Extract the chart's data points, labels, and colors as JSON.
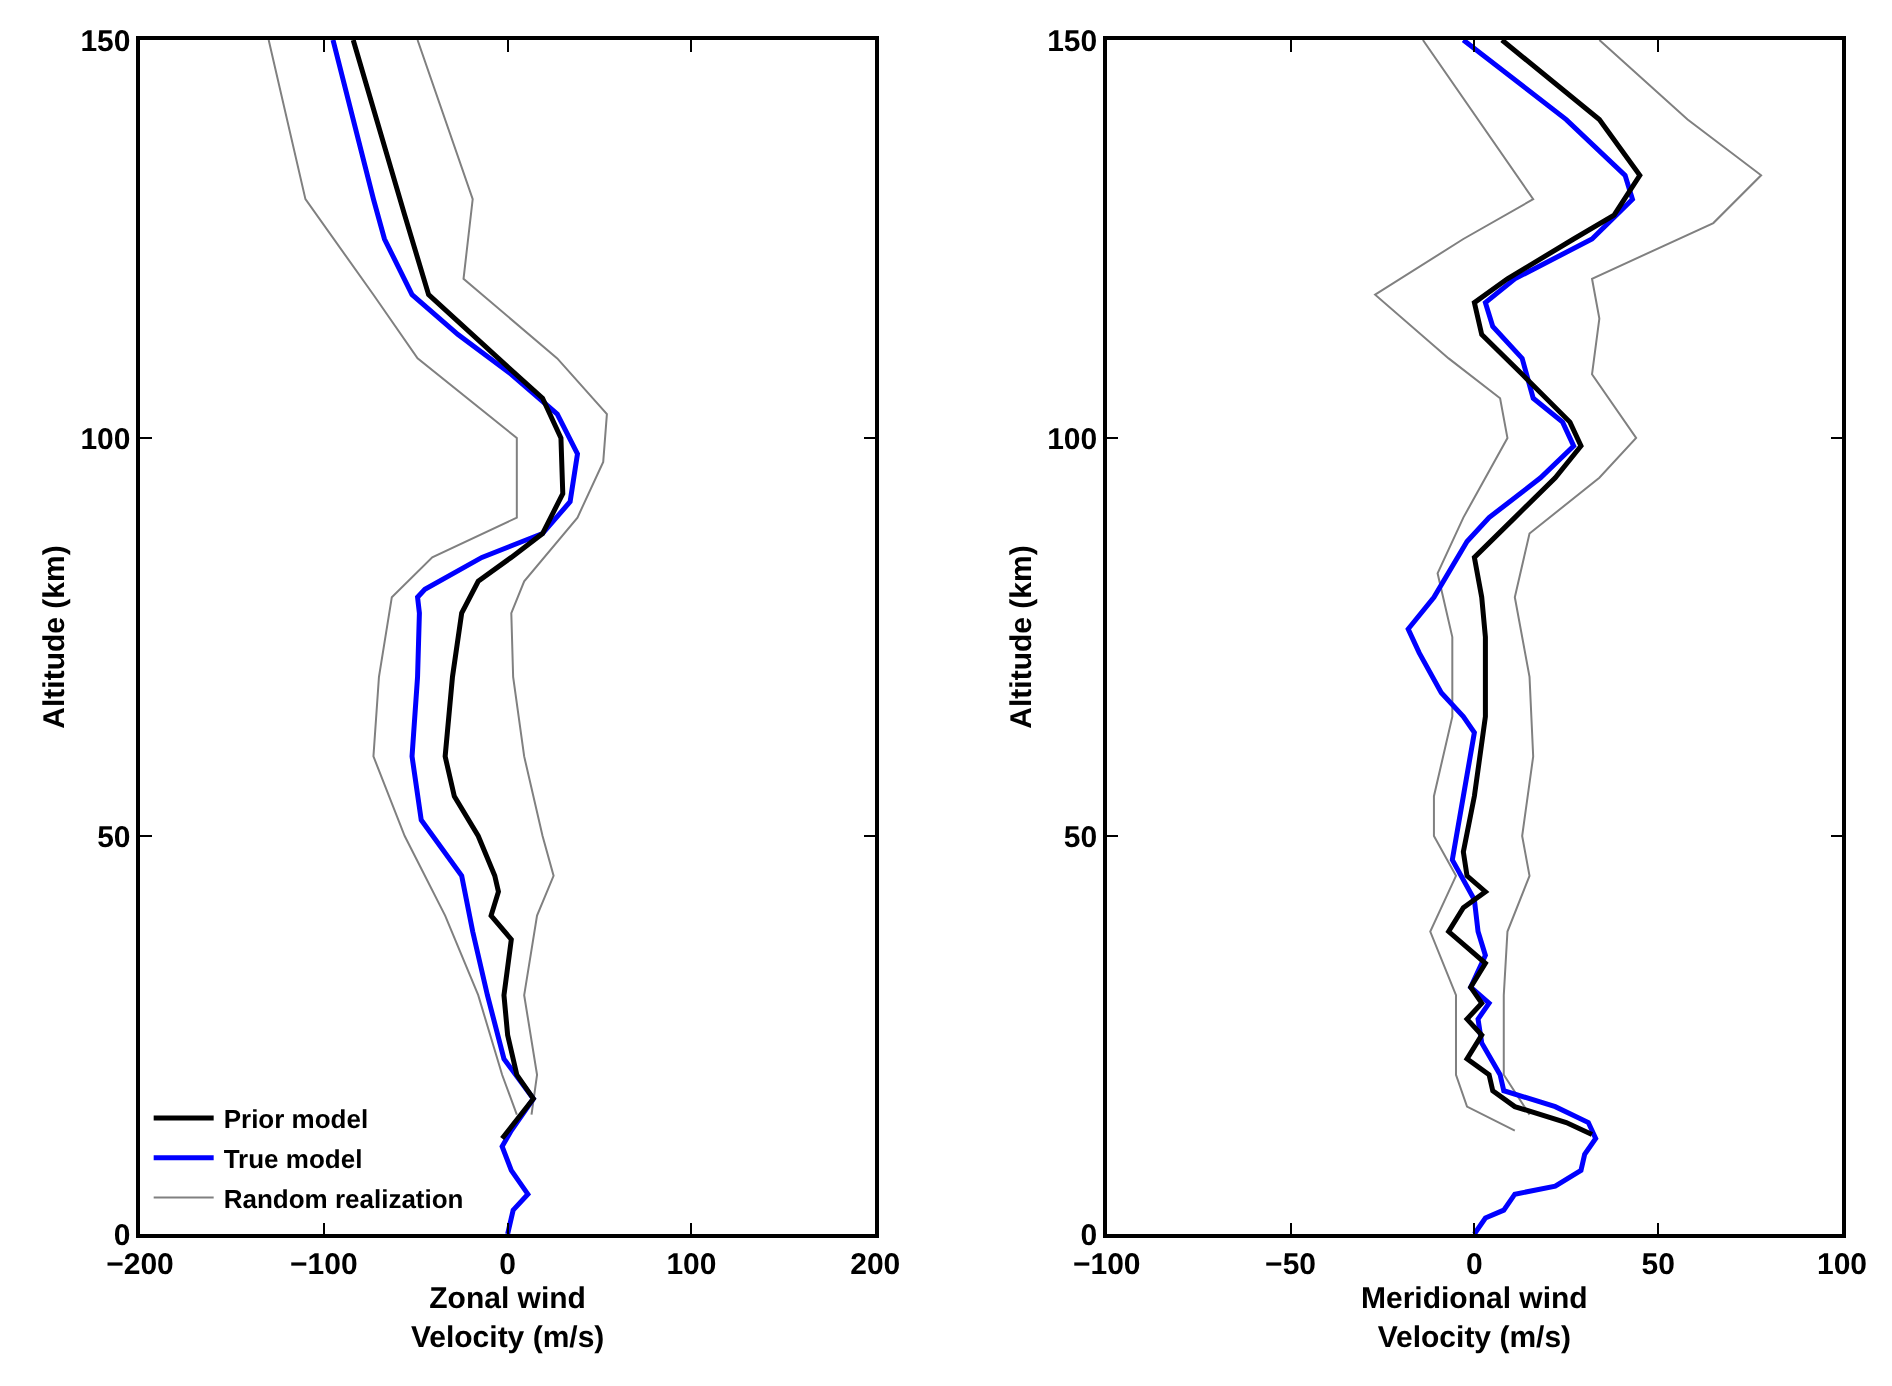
{
  "chart_data": [
    {
      "type": "line",
      "xlabel": "Zonal wind\nVelocity (m/s)",
      "ylabel": "Altitude (km)",
      "xlim": [
        -200,
        200
      ],
      "xticks": [
        {
          "value": -200,
          "label": "−200"
        },
        {
          "value": -100,
          "label": "−100"
        },
        0,
        100,
        200
      ],
      "ylim": [
        0,
        150
      ],
      "yticks": [
        0,
        50,
        100,
        150
      ],
      "legend": "bottom left",
      "line_style": "solid",
      "marker": "none",
      "series": [
        {
          "name": "Prior model",
          "color": "#000000",
          "x": [
            -84,
            -56,
            -43,
            -5,
            19,
            29,
            30,
            19,
            2,
            -16,
            -25,
            -30,
            -34,
            -29,
            -16,
            -7,
            -5,
            -9,
            2,
            -2,
            0,
            5,
            14,
            -3
          ],
          "values": [
            150,
            128,
            118,
            110,
            105,
            100,
            93,
            88,
            85,
            82,
            78,
            70,
            60,
            55,
            50,
            45,
            43,
            40,
            37,
            30,
            25,
            20,
            17,
            12
          ]
        },
        {
          "name": "True model",
          "color": "#0000ff",
          "x": [
            -95,
            -73,
            -67,
            -52,
            -27,
            2,
            27,
            38,
            34,
            19,
            -14,
            -45,
            -49,
            -48,
            -49,
            -52,
            -47,
            -25,
            -19,
            -11,
            -2,
            14,
            2,
            -3,
            2,
            11,
            3,
            0
          ],
          "values": [
            150,
            130,
            125,
            118,
            113,
            108,
            103,
            98,
            92,
            88,
            85,
            81,
            80,
            78,
            70,
            60,
            52,
            45,
            38,
            30,
            22,
            17,
            13,
            11,
            8,
            5,
            3,
            0
          ]
        },
        {
          "name": "Random realization",
          "color": "#808080",
          "x": [
            -130,
            -110,
            -73,
            -49,
            5,
            5,
            -41,
            -63,
            -70,
            -73,
            -56,
            -34,
            -16,
            -3,
            5
          ],
          "values": [
            150,
            130,
            118,
            110,
            100,
            90,
            85,
            80,
            70,
            60,
            50,
            40,
            30,
            20,
            15
          ]
        },
        {
          "color": "#808080",
          "x": [
            -49,
            -19,
            -24,
            27,
            54,
            52,
            38,
            9,
            2,
            3,
            9,
            19,
            25,
            16,
            9,
            16,
            13
          ],
          "values": [
            150,
            130,
            120,
            110,
            103,
            97,
            90,
            82,
            78,
            70,
            60,
            50,
            45,
            40,
            30,
            20,
            15
          ]
        }
      ]
    },
    {
      "type": "line",
      "xlabel": "Meridional wind\nVelocity (m/s)",
      "ylabel": "Altitude (km)",
      "xlim": [
        -100,
        100
      ],
      "xticks": [
        {
          "value": -100,
          "label": "−100"
        },
        {
          "value": -50,
          "label": "−50"
        },
        0,
        50,
        100
      ],
      "ylim": [
        0,
        150
      ],
      "yticks": [
        0,
        50,
        100,
        150
      ],
      "legend": false,
      "line_style": "solid",
      "marker": "none",
      "series": [
        {
          "color": "#000000",
          "x": [
            7.5,
            34,
            45,
            38,
            27,
            9,
            0,
            2,
            13,
            26,
            29,
            22,
            11,
            0,
            2,
            3,
            3,
            0,
            -3,
            -2,
            3,
            -3,
            -7,
            -2,
            3,
            -1,
            2,
            -2,
            2,
            -2,
            4,
            5,
            11,
            25,
            32
          ],
          "values": [
            150,
            140,
            133,
            128,
            125,
            120,
            117,
            113,
            108,
            102,
            99,
            95,
            90,
            85,
            80,
            75,
            65,
            55,
            48,
            45,
            43,
            41,
            38,
            36,
            34,
            31,
            29,
            27,
            25,
            22,
            20,
            18,
            16,
            14,
            12.5
          ]
        },
        {
          "color": "#0000ff",
          "x": [
            -3,
            25,
            41,
            43,
            32,
            11,
            3,
            5,
            13,
            16,
            24,
            27,
            18,
            4,
            -2,
            -11,
            -18,
            -15,
            -9,
            -3,
            0,
            -3,
            -6,
            0,
            1,
            3,
            -1,
            4,
            1,
            2,
            7,
            8,
            22,
            31,
            33,
            30,
            29,
            22,
            11,
            8,
            3,
            0
          ],
          "values": [
            150,
            140,
            133,
            130,
            125,
            120,
            117,
            114,
            110,
            105,
            102,
            99,
            95,
            90,
            87,
            80,
            76,
            73,
            68,
            65,
            63,
            55,
            47,
            42,
            38,
            35,
            31,
            29,
            27,
            24,
            20,
            18,
            16,
            14,
            12,
            10,
            8,
            6,
            5,
            3,
            2,
            0
          ]
        },
        {
          "color": "#808080",
          "x": [
            -14,
            16,
            -3,
            -27,
            -7,
            7,
            9,
            -3,
            -10,
            -6,
            -6,
            -11,
            -11,
            -5,
            -12,
            -5,
            -5,
            -2,
            11
          ],
          "values": [
            150,
            130,
            125,
            118,
            110,
            105,
            100,
            90,
            83,
            75,
            65,
            55,
            50,
            45,
            38,
            30,
            20,
            16,
            13
          ]
        },
        {
          "color": "#808080",
          "x": [
            34,
            58,
            78,
            65,
            32,
            34,
            32,
            44,
            34,
            15,
            11,
            15,
            16,
            13,
            15,
            9,
            8,
            8,
            15
          ],
          "values": [
            150,
            140,
            133,
            127,
            120,
            115,
            108,
            100,
            95,
            88,
            80,
            70,
            60,
            50,
            45,
            38,
            30,
            20,
            15
          ]
        }
      ]
    }
  ]
}
